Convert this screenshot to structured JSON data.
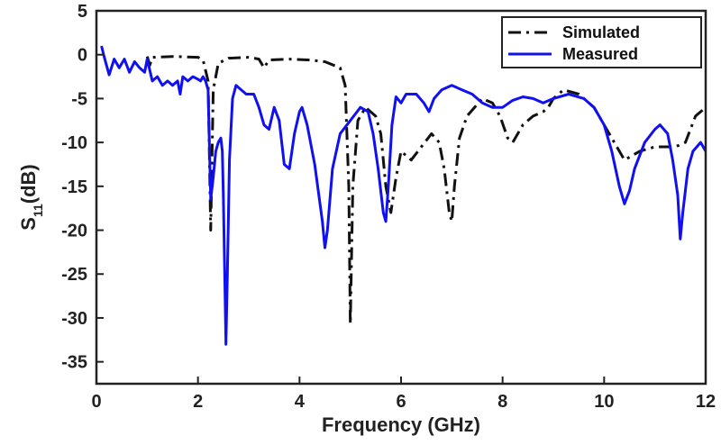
{
  "chart_data": {
    "type": "line",
    "title": "",
    "xlabel": "Frequency (GHz)",
    "ylabel_main": "S",
    "ylabel_sub": "11",
    "ylabel_tail": "(dB)",
    "xlim": [
      0,
      12
    ],
    "ylim": [
      -37.5,
      5
    ],
    "xticks": [
      0,
      2,
      4,
      6,
      8,
      10,
      12
    ],
    "yticks": [
      5,
      0,
      -5,
      -10,
      -15,
      -20,
      -25,
      -30,
      -35
    ],
    "grid": false,
    "legend_position": "top-right",
    "series": [
      {
        "name": "Simulated",
        "color": "#111111",
        "dash": "dash-dot",
        "points": [
          [
            1.0,
            -0.2
          ],
          [
            1.05,
            -1.2
          ],
          [
            1.1,
            -0.3
          ],
          [
            1.5,
            -0.2
          ],
          [
            2.0,
            -0.3
          ],
          [
            2.1,
            -0.6
          ],
          [
            2.2,
            -3.0
          ],
          [
            2.25,
            -20.0
          ],
          [
            2.3,
            -4.0
          ],
          [
            2.4,
            -1.0
          ],
          [
            2.6,
            -0.4
          ],
          [
            3.0,
            -0.3
          ],
          [
            3.2,
            -0.5
          ],
          [
            3.3,
            -1.5
          ],
          [
            3.4,
            -0.6
          ],
          [
            3.8,
            -0.5
          ],
          [
            4.2,
            -0.6
          ],
          [
            4.5,
            -0.8
          ],
          [
            4.8,
            -1.5
          ],
          [
            4.9,
            -3.5
          ],
          [
            4.97,
            -15.0
          ],
          [
            5.0,
            -30.7
          ],
          [
            5.05,
            -15.0
          ],
          [
            5.15,
            -7.5
          ],
          [
            5.3,
            -6.0
          ],
          [
            5.5,
            -7.0
          ],
          [
            5.6,
            -9.0
          ],
          [
            5.7,
            -15.0
          ],
          [
            5.8,
            -18.0
          ],
          [
            5.9,
            -14.0
          ],
          [
            6.0,
            -11.0
          ],
          [
            6.2,
            -12.0
          ],
          [
            6.4,
            -10.5
          ],
          [
            6.6,
            -9.0
          ],
          [
            6.75,
            -10.0
          ],
          [
            6.85,
            -13.0
          ],
          [
            6.95,
            -18.0
          ],
          [
            7.0,
            -19.0
          ],
          [
            7.05,
            -15.0
          ],
          [
            7.15,
            -9.5
          ],
          [
            7.3,
            -7.0
          ],
          [
            7.6,
            -5.0
          ],
          [
            7.8,
            -5.5
          ],
          [
            7.95,
            -7.0
          ],
          [
            8.1,
            -9.5
          ],
          [
            8.2,
            -10.0
          ],
          [
            8.4,
            -8.0
          ],
          [
            8.6,
            -7.0
          ],
          [
            8.8,
            -6.5
          ],
          [
            8.9,
            -6.0
          ],
          [
            9.0,
            -5.0
          ],
          [
            9.2,
            -4.0
          ],
          [
            9.5,
            -4.5
          ],
          [
            9.8,
            -6.0
          ],
          [
            10.0,
            -8.0
          ],
          [
            10.2,
            -10.0
          ],
          [
            10.4,
            -12.0
          ],
          [
            10.7,
            -11.0
          ],
          [
            11.0,
            -10.5
          ],
          [
            11.4,
            -10.5
          ],
          [
            11.6,
            -10.0
          ],
          [
            11.8,
            -7.0
          ],
          [
            12.0,
            -6.0
          ]
        ]
      },
      {
        "name": "Measured",
        "color": "#1010f0",
        "dash": "solid",
        "points": [
          [
            0.1,
            1.0
          ],
          [
            0.15,
            -0.2
          ],
          [
            0.25,
            -2.3
          ],
          [
            0.35,
            -0.5
          ],
          [
            0.45,
            -1.5
          ],
          [
            0.55,
            -0.5
          ],
          [
            0.65,
            -2.0
          ],
          [
            0.75,
            -0.8
          ],
          [
            0.85,
            -1.5
          ],
          [
            0.95,
            -2.0
          ],
          [
            1.0,
            -0.5
          ],
          [
            1.1,
            -3.0
          ],
          [
            1.2,
            -2.5
          ],
          [
            1.3,
            -3.5
          ],
          [
            1.4,
            -3.0
          ],
          [
            1.5,
            -3.5
          ],
          [
            1.6,
            -3.0
          ],
          [
            1.65,
            -4.5
          ],
          [
            1.7,
            -2.5
          ],
          [
            1.8,
            -3.0
          ],
          [
            1.9,
            -2.5
          ],
          [
            2.0,
            -2.8
          ],
          [
            2.05,
            -3.0
          ],
          [
            2.1,
            -2.5
          ],
          [
            2.15,
            -3.0
          ],
          [
            2.2,
            -4.0
          ],
          [
            2.25,
            -16.5
          ],
          [
            2.3,
            -14.0
          ],
          [
            2.35,
            -11.0
          ],
          [
            2.4,
            -10.0
          ],
          [
            2.45,
            -9.5
          ],
          [
            2.48,
            -11.0
          ],
          [
            2.5,
            -16.0
          ],
          [
            2.55,
            -33.0
          ],
          [
            2.58,
            -25.0
          ],
          [
            2.62,
            -12.0
          ],
          [
            2.68,
            -5.0
          ],
          [
            2.75,
            -3.5
          ],
          [
            2.85,
            -4.0
          ],
          [
            2.95,
            -4.5
          ],
          [
            3.1,
            -4.5
          ],
          [
            3.2,
            -6.0
          ],
          [
            3.3,
            -8.0
          ],
          [
            3.4,
            -8.5
          ],
          [
            3.5,
            -6.0
          ],
          [
            3.6,
            -7.5
          ],
          [
            3.7,
            -12.5
          ],
          [
            3.8,
            -13.0
          ],
          [
            3.9,
            -9.0
          ],
          [
            4.0,
            -6.5
          ],
          [
            4.05,
            -6.0
          ],
          [
            4.15,
            -8.0
          ],
          [
            4.3,
            -12.5
          ],
          [
            4.45,
            -19.0
          ],
          [
            4.5,
            -22.0
          ],
          [
            4.55,
            -20.0
          ],
          [
            4.65,
            -13.0
          ],
          [
            4.8,
            -9.0
          ],
          [
            5.0,
            -7.5
          ],
          [
            5.2,
            -6.0
          ],
          [
            5.35,
            -6.5
          ],
          [
            5.45,
            -9.0
          ],
          [
            5.55,
            -13.0
          ],
          [
            5.65,
            -18.0
          ],
          [
            5.7,
            -19.0
          ],
          [
            5.75,
            -15.0
          ],
          [
            5.82,
            -8.0
          ],
          [
            5.9,
            -4.8
          ],
          [
            6.0,
            -5.5
          ],
          [
            6.1,
            -4.5
          ],
          [
            6.3,
            -4.5
          ],
          [
            6.45,
            -5.5
          ],
          [
            6.55,
            -6.5
          ],
          [
            6.65,
            -5.0
          ],
          [
            6.8,
            -4.0
          ],
          [
            7.0,
            -3.5
          ],
          [
            7.2,
            -4.0
          ],
          [
            7.4,
            -4.5
          ],
          [
            7.6,
            -5.5
          ],
          [
            7.8,
            -6.0
          ],
          [
            8.0,
            -6.0
          ],
          [
            8.2,
            -5.2
          ],
          [
            8.4,
            -4.8
          ],
          [
            8.6,
            -5.0
          ],
          [
            8.8,
            -5.5
          ],
          [
            9.0,
            -5.0
          ],
          [
            9.3,
            -4.5
          ],
          [
            9.6,
            -5.0
          ],
          [
            9.8,
            -6.0
          ],
          [
            10.0,
            -8.0
          ],
          [
            10.15,
            -11.0
          ],
          [
            10.3,
            -15.0
          ],
          [
            10.4,
            -17.0
          ],
          [
            10.5,
            -15.5
          ],
          [
            10.6,
            -13.0
          ],
          [
            10.8,
            -10.0
          ],
          [
            11.0,
            -8.5
          ],
          [
            11.1,
            -8.0
          ],
          [
            11.25,
            -9.0
          ],
          [
            11.35,
            -12.0
          ],
          [
            11.45,
            -16.0
          ],
          [
            11.5,
            -21.0
          ],
          [
            11.55,
            -18.0
          ],
          [
            11.65,
            -13.0
          ],
          [
            11.75,
            -11.0
          ],
          [
            11.9,
            -10.0
          ],
          [
            12.0,
            -11.0
          ]
        ]
      }
    ]
  }
}
